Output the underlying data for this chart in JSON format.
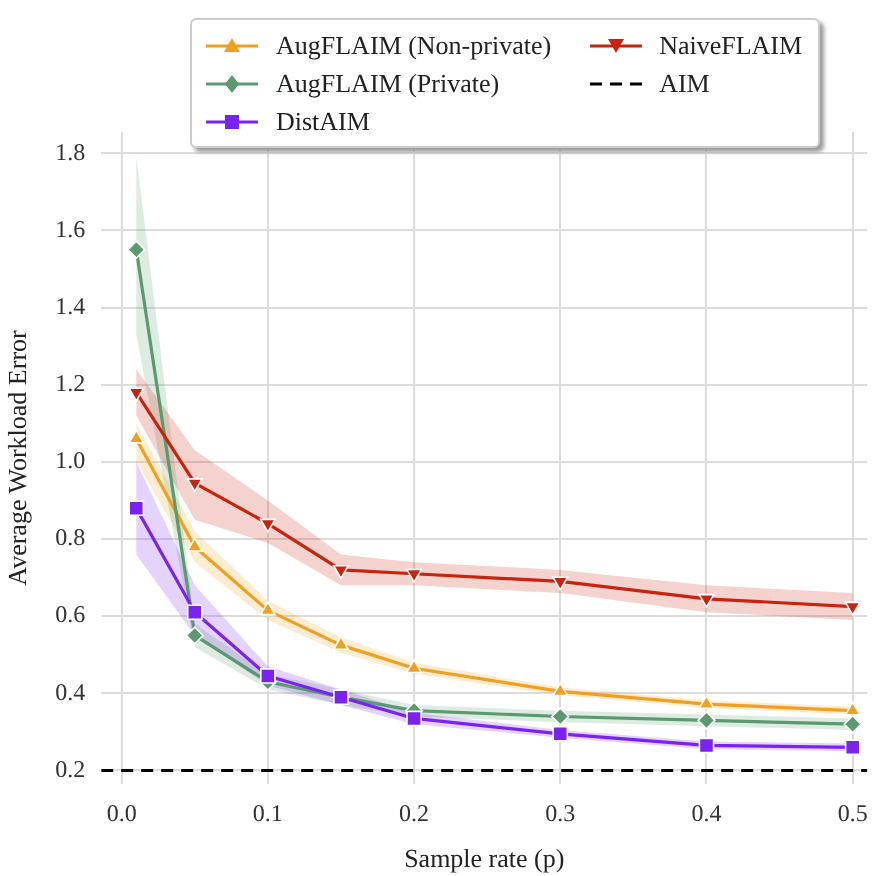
{
  "chart_data": {
    "type": "line",
    "xlabel": "Sample rate (p)",
    "ylabel": "Average Workload Error",
    "x": [
      0.01,
      0.05,
      0.1,
      0.15,
      0.2,
      0.3,
      0.4,
      0.5
    ],
    "xlim": [
      -0.014,
      0.51
    ],
    "xticks": [
      {
        "value": 0,
        "label": "0.0"
      },
      0.1,
      0.2,
      0.3,
      0.4,
      0.5
    ],
    "ylim": [
      0.165,
      1.855
    ],
    "yticks": [
      0.2,
      0.4,
      0.6,
      0.8,
      {
        "value": 1,
        "label": "1.0"
      },
      1.2,
      1.4,
      1.6,
      1.8
    ],
    "grid": true,
    "legend": "top right",
    "line_style": "solid",
    "series": [
      {
        "name": "AugFLAIM (Non-private)",
        "color": "#f0a020",
        "marker": "triangle",
        "values": [
          1.06,
          0.78,
          0.615,
          0.525,
          0.465,
          0.405,
          0.372,
          0.355
        ],
        "lower": [
          1.0,
          0.74,
          0.59,
          0.505,
          0.45,
          0.395,
          0.362,
          0.345
        ],
        "upper": [
          1.1,
          0.82,
          0.64,
          0.545,
          0.48,
          0.415,
          0.382,
          0.365
        ]
      },
      {
        "name": "AugFLAIM (Private)",
        "color": "#5a9a6e",
        "marker": "diamond",
        "values": [
          1.55,
          0.55,
          0.43,
          0.39,
          0.355,
          0.34,
          0.33,
          0.32
        ],
        "lower": [
          1.33,
          0.52,
          0.41,
          0.37,
          0.34,
          0.325,
          0.315,
          0.305
        ],
        "upper": [
          1.79,
          0.58,
          0.45,
          0.41,
          0.37,
          0.355,
          0.345,
          0.335
        ]
      },
      {
        "name": "DistAIM",
        "color": "#7a22f0",
        "marker": "square",
        "values": [
          0.88,
          0.61,
          0.445,
          0.39,
          0.335,
          0.295,
          0.265,
          0.26
        ],
        "lower": [
          0.76,
          0.55,
          0.42,
          0.37,
          0.32,
          0.285,
          0.255,
          0.25
        ],
        "upper": [
          1.0,
          0.68,
          0.47,
          0.41,
          0.35,
          0.305,
          0.275,
          0.27
        ]
      },
      {
        "name": "NaiveFLAIM",
        "color": "#c8230f",
        "marker": "triangle-down",
        "values": [
          1.18,
          0.945,
          0.84,
          0.72,
          0.71,
          0.69,
          0.645,
          0.625
        ],
        "lower": [
          1.12,
          0.85,
          0.79,
          0.68,
          0.68,
          0.66,
          0.61,
          0.59
        ],
        "upper": [
          1.24,
          1.03,
          0.9,
          0.76,
          0.74,
          0.72,
          0.68,
          0.66
        ]
      }
    ],
    "ref_lines": [
      {
        "axis": "y",
        "value": 0.2,
        "label": "AIM",
        "color": "#000000",
        "line_style": "dashed"
      }
    ]
  }
}
